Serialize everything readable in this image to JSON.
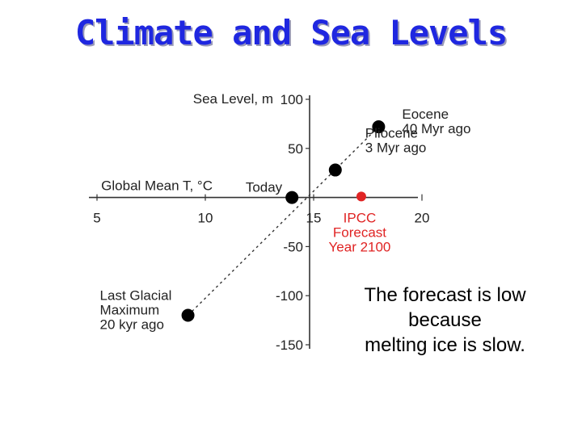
{
  "slide": {
    "title": "Climate and Sea Levels",
    "note_lines": [
      "The forecast is low",
      "because",
      "melting ice is slow."
    ]
  },
  "chart_data": {
    "type": "scatter",
    "title": "",
    "xlabel": "Global Mean T, °C",
    "ylabel": "Sea Level, m",
    "xlim": [
      5,
      20
    ],
    "ylim": [
      -150,
      100
    ],
    "x_ticks": [
      5,
      10,
      15,
      20
    ],
    "y_ticks": [
      100,
      50,
      -50,
      -100,
      -150
    ],
    "grid": false,
    "colors": {
      "points": "#000000",
      "forecast": "#e02424"
    },
    "points": [
      {
        "name": "Last Glacial Maximum",
        "x": 9.2,
        "y": -120,
        "label_lines": [
          "Last Glacial",
          "Maximum",
          "20 kyr ago"
        ],
        "color": "#000000"
      },
      {
        "name": "Today",
        "x": 14.0,
        "y": 0,
        "label_lines": [
          "Today"
        ],
        "color": "#000000"
      },
      {
        "name": "Pliocene",
        "x": 16.0,
        "y": 28,
        "label_lines": [
          "Pliocene",
          "3 Myr ago"
        ],
        "color": "#000000"
      },
      {
        "name": "Eocene",
        "x": 18.0,
        "y": 72,
        "label_lines": [
          "Eocene",
          "40 Myr ago"
        ],
        "color": "#000000"
      },
      {
        "name": "IPCC Forecast Year 2100",
        "x": 17.2,
        "y": 1,
        "label_lines": [
          "IPCC",
          "Forecast",
          "Year 2100"
        ],
        "color": "#e02424"
      }
    ],
    "trend_line": {
      "from": [
        9.2,
        -120
      ],
      "to": [
        18.0,
        72
      ],
      "style": "dashed"
    }
  }
}
